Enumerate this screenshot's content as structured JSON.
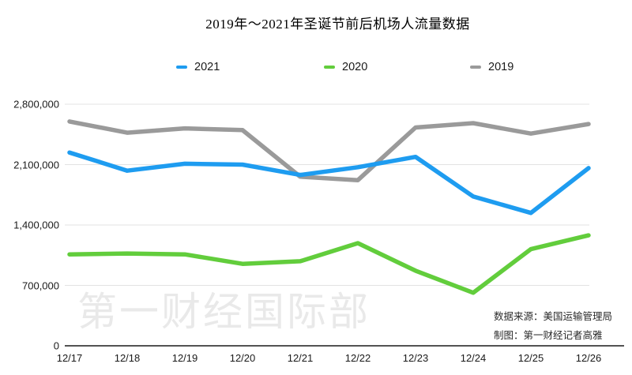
{
  "title": "2019年～2021年圣诞节前后机场人流量数据",
  "watermark": "第一财经国际部",
  "annotations": {
    "source": "数据来源：美国运输管理局",
    "credit": "制图：第一财经记者高雅"
  },
  "chart_data": {
    "type": "line",
    "title": "2019年～2021年圣诞节前后机场人流量数据",
    "categories": [
      "12/17",
      "12/18",
      "12/19",
      "12/20",
      "12/21",
      "12/22",
      "12/23",
      "12/24",
      "12/25",
      "12/26"
    ],
    "series": [
      {
        "name": "2021",
        "color": "#1E9CF0",
        "values": [
          2240000,
          2030000,
          2110000,
          2100000,
          1980000,
          2070000,
          2190000,
          1730000,
          1540000,
          2060000
        ]
      },
      {
        "name": "2020",
        "color": "#62CD3C",
        "values": [
          1060000,
          1070000,
          1060000,
          950000,
          980000,
          1190000,
          870000,
          615000,
          1120000,
          1280000
        ]
      },
      {
        "name": "2019",
        "color": "#9A9A9A",
        "values": [
          2600000,
          2470000,
          2520000,
          2500000,
          1960000,
          1920000,
          2530000,
          2580000,
          2460000,
          2570000
        ]
      }
    ],
    "xlabel": "",
    "ylabel": "",
    "ylim": [
      0,
      2800000
    ],
    "yticks": [
      0,
      700000,
      1400000,
      2100000,
      2800000
    ],
    "ytick_labels": [
      "0",
      "700,000",
      "1,400,000",
      "2,100,000",
      "2,800,000"
    ],
    "grid": "horizontal",
    "legend_position": "top",
    "grid_color": "#e3e3e3",
    "axis_color": "#1a1a1a"
  }
}
